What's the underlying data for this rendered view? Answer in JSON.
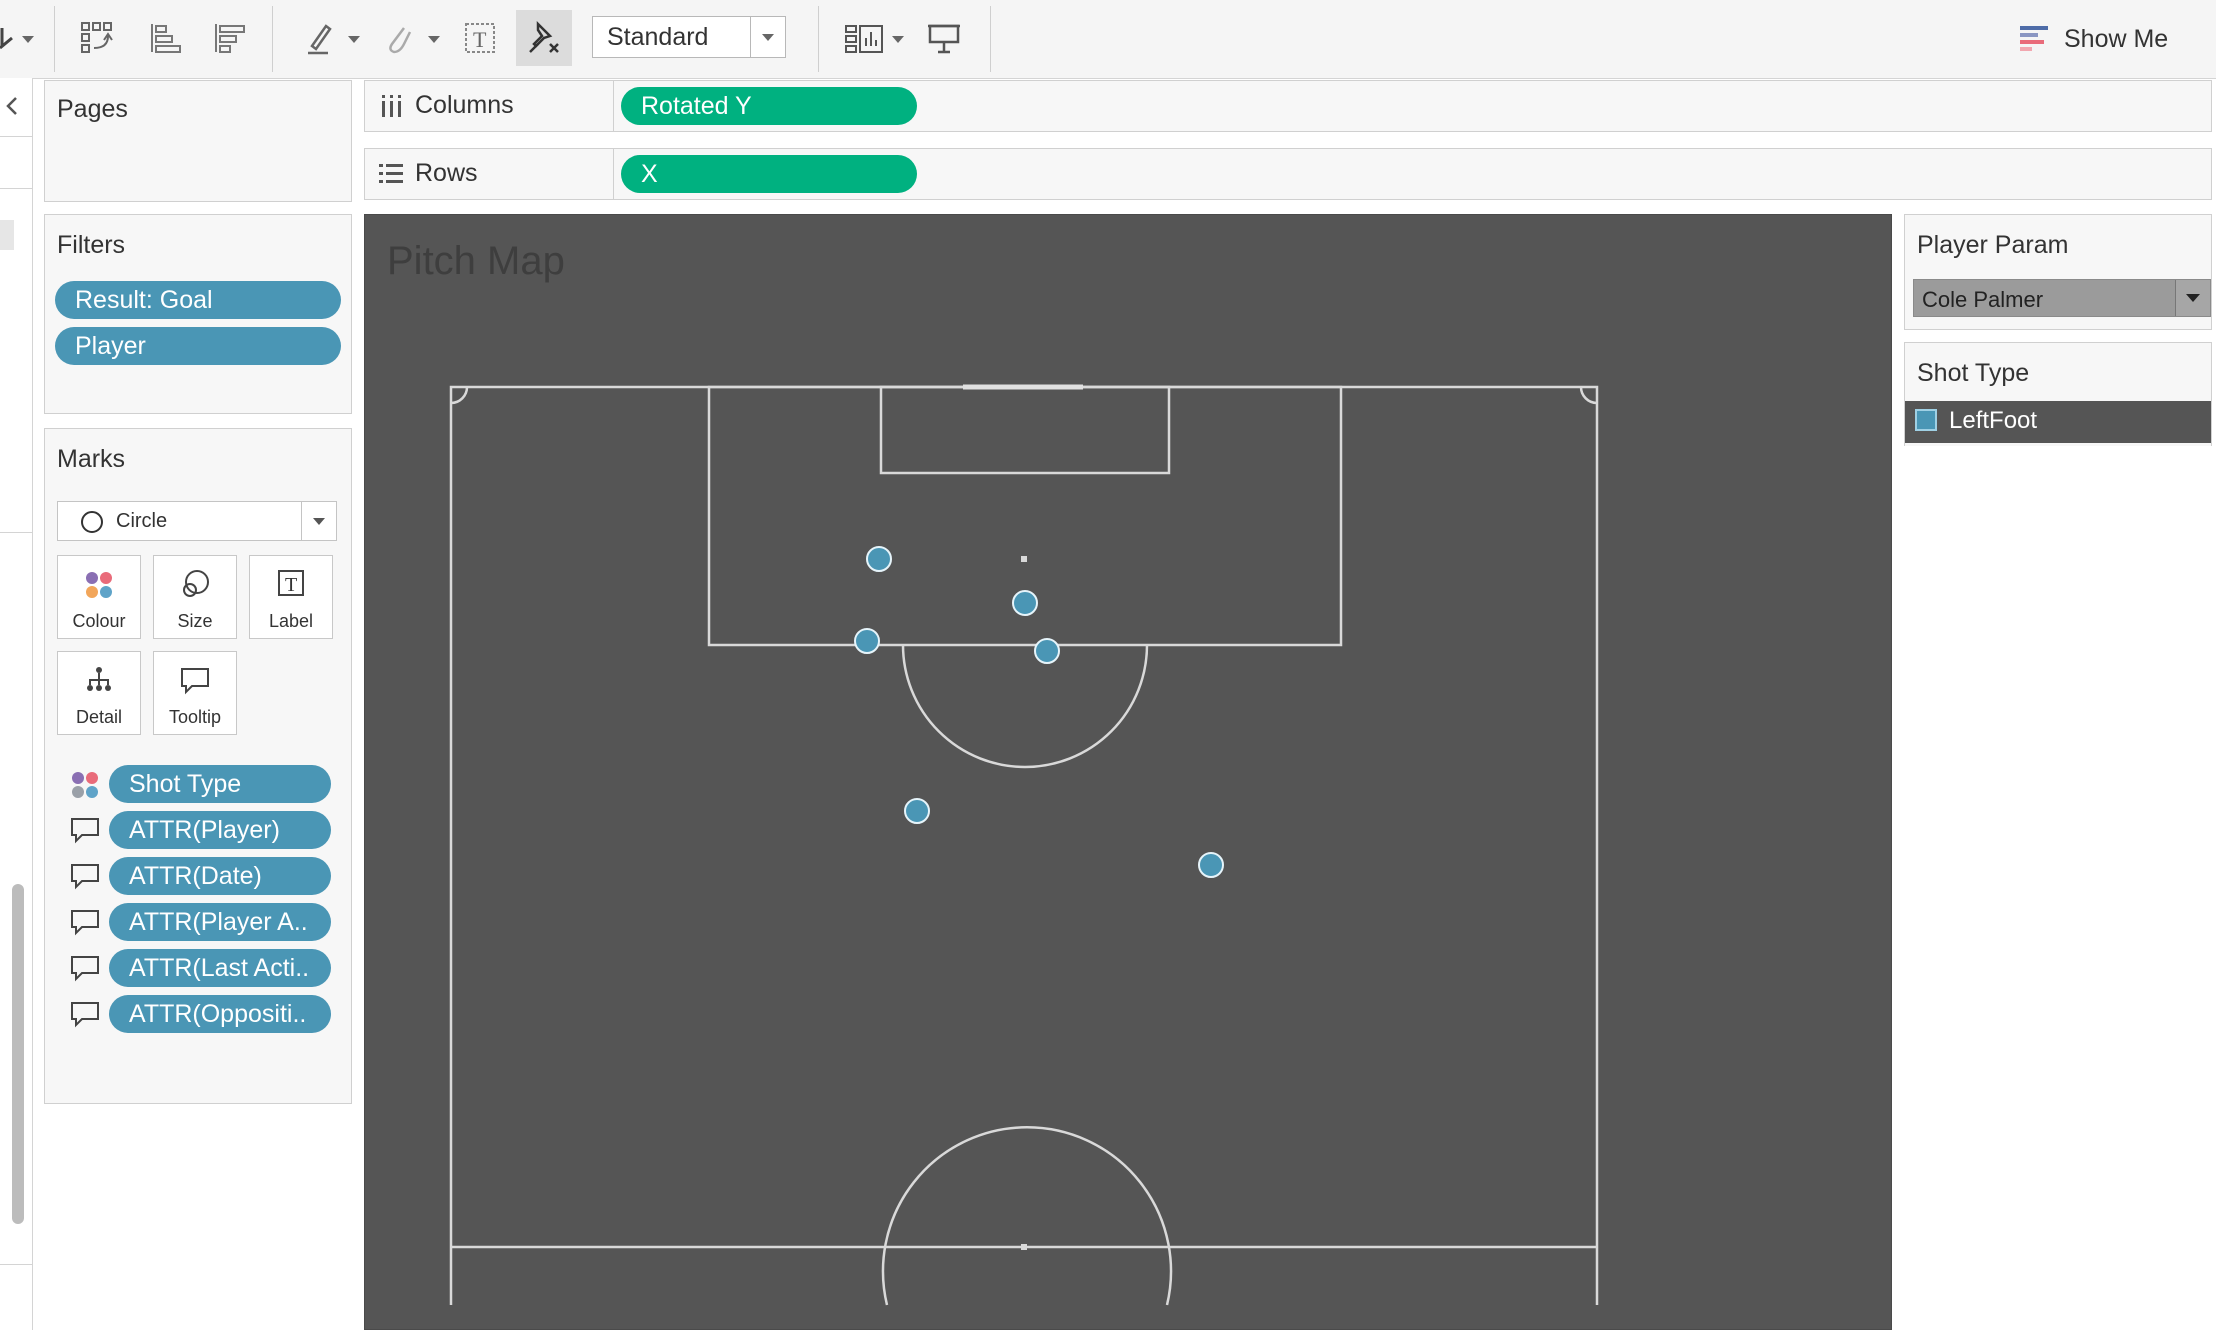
{
  "toolbar": {
    "view_select": "Standard",
    "show_me_label": "Show Me",
    "icons": [
      "dropdown-arrow-icon",
      "swap-icon",
      "sort-ascending-icon",
      "sort-descending-icon",
      "highlight-icon",
      "group-icon",
      "text-box-icon",
      "unpin-icon",
      "view-size-icon",
      "presentation-icon",
      "show-me-icon"
    ]
  },
  "pages": {
    "title": "Pages"
  },
  "filters": {
    "title": "Filters",
    "pills": [
      "Result: Goal",
      "Player"
    ]
  },
  "marks": {
    "title": "Marks",
    "mark_type": "Circle",
    "buttons": {
      "colour": "Colour",
      "size": "Size",
      "label": "Label",
      "detail": "Detail",
      "tooltip": "Tooltip"
    },
    "fields": [
      {
        "icon": "colour-icon",
        "label": "Shot Type"
      },
      {
        "icon": "tooltip-icon",
        "label": "ATTR(Player)"
      },
      {
        "icon": "tooltip-icon",
        "label": "ATTR(Date)"
      },
      {
        "icon": "tooltip-icon",
        "label": "ATTR(Player A.."
      },
      {
        "icon": "tooltip-icon",
        "label": "ATTR(Last Acti.."
      },
      {
        "icon": "tooltip-icon",
        "label": "ATTR(Oppositi.."
      }
    ]
  },
  "shelves": {
    "columns": {
      "label": "Columns",
      "pill": "Rotated Y"
    },
    "rows": {
      "label": "Rows",
      "pill": "X"
    }
  },
  "viz": {
    "title": "Pitch Map"
  },
  "parameter": {
    "title": "Player Param",
    "value": "Cole Palmer"
  },
  "legend": {
    "title": "Shot Type",
    "items": [
      {
        "label": "LeftFoot",
        "color": "#4a96b5"
      }
    ]
  },
  "colors": {
    "green_pill": "#00b180",
    "blue_pill": "#4a96b5",
    "viz_background": "#555555",
    "pitch_lines": "#d9d9d9",
    "marker": "#4a96b5"
  }
}
